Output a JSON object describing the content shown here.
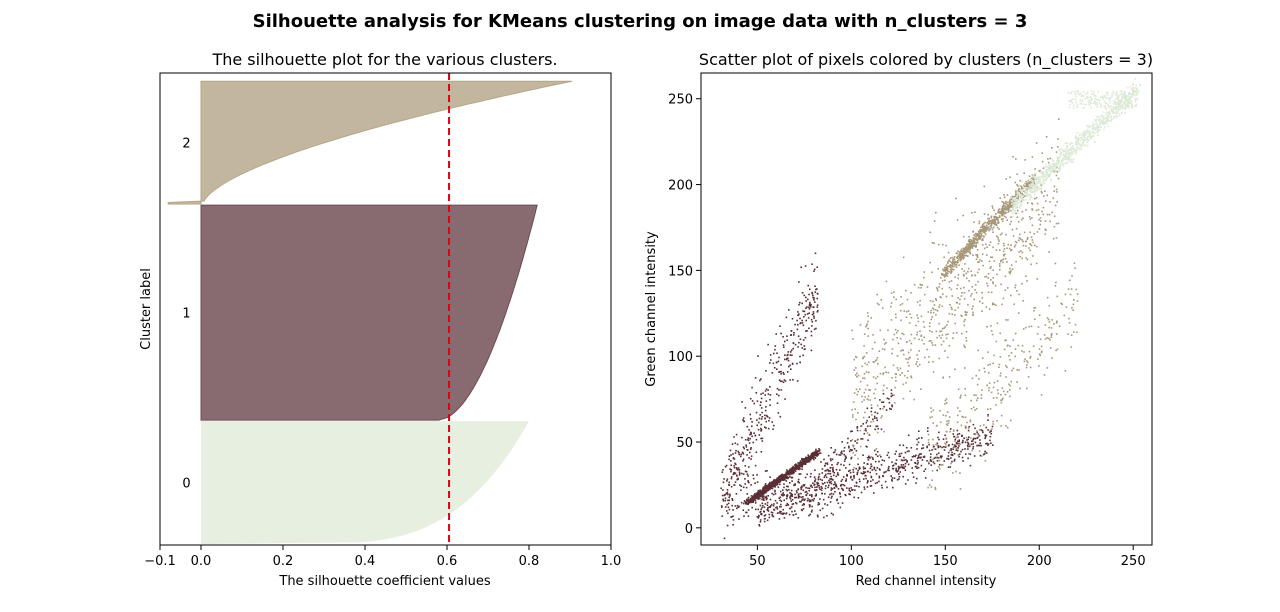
{
  "figure": {
    "suptitle": "Silhouette analysis for KMeans clustering on image data with n_clusters = 3"
  },
  "colors": {
    "cluster_0": "#e6efe0",
    "cluster_1": "#6e4b51",
    "cluster_2": "#b5a68a",
    "threshold_line": "#e0000f",
    "scatter_0": "#dde9d6",
    "scatter_1": "#5a2e35",
    "scatter_2": "#a8987a"
  },
  "chart_data": [
    {
      "type": "area",
      "title": "The silhouette plot for the various clusters.",
      "xlabel": "The silhouette coefficient values",
      "ylabel": "Cluster label",
      "xlim": [
        -0.1,
        1.0
      ],
      "xticks": [
        "−0.1",
        "0.0",
        "0.2",
        "0.4",
        "0.6",
        "0.8",
        "1.0"
      ],
      "xtick_values": [
        -0.1,
        0.0,
        0.2,
        0.4,
        0.6,
        0.8,
        1.0
      ],
      "grid": false,
      "average_silhouette": 0.605,
      "clusters": [
        {
          "label": "0",
          "size": 1200,
          "max_value": 0.8,
          "min_value": 0.0
        },
        {
          "label": "1",
          "size": 2100,
          "max_value": 0.82,
          "min_value": 0.0
        },
        {
          "label": "2",
          "size": 1200,
          "max_value": 0.92,
          "min_value": -0.08
        }
      ]
    },
    {
      "type": "scatter",
      "title": "Scatter plot of pixels colored by clusters (n_clusters = 3)",
      "xlabel": "Red channel intensity",
      "ylabel": "Green channel intensity",
      "xlim": [
        20,
        260
      ],
      "ylim": [
        -10,
        265
      ],
      "xticks": [
        "50",
        "100",
        "150",
        "200",
        "250"
      ],
      "xtick_values": [
        50,
        100,
        150,
        200,
        250
      ],
      "yticks": [
        "0",
        "50",
        "100",
        "150",
        "200",
        "250"
      ],
      "ytick_values": [
        0,
        50,
        100,
        150,
        200,
        250
      ],
      "grid": false,
      "series": [
        {
          "cluster": 0,
          "x_range": [
            185,
            252
          ],
          "y_range": [
            185,
            255
          ]
        },
        {
          "cluster": 1,
          "x_range": [
            28,
            215
          ],
          "y_range": [
            5,
            160
          ]
        },
        {
          "cluster": 2,
          "x_range": [
            90,
            220
          ],
          "y_range": [
            10,
            235
          ]
        }
      ]
    }
  ]
}
